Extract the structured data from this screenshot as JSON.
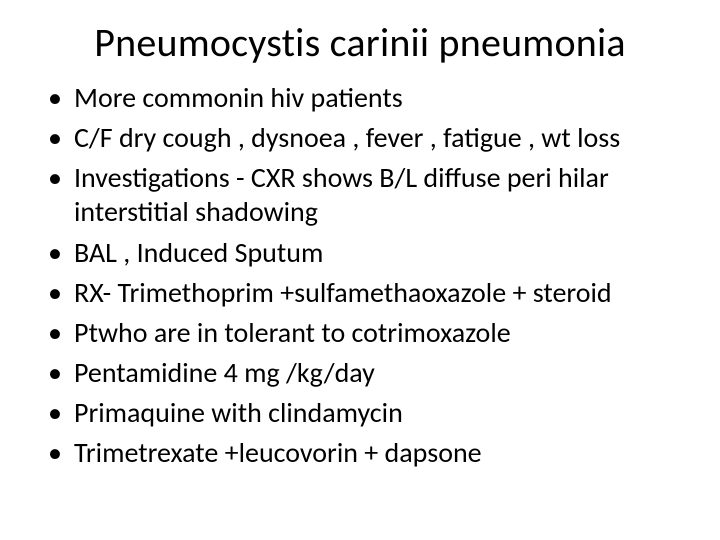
{
  "title": "Pneumocystis carinii pneumonia",
  "bullets": [
    "More commonin hiv patients",
    "C/F dry cough , dysnoea , fever , fatigue , wt loss",
    "Investigations  - CXR  shows B/L diffuse peri hilar interstitial shadowing",
    "BAL , Induced Sputum",
    "RX- Trimethoprim +sulfamethaoxazole + steroid",
    "Ptwho are in tolerant to cotrimoxazole",
    "Pentamidine 4 mg /kg/day",
    "Primaquine with clindamycin",
    "Trimetrexate +leucovorin  + dapsone"
  ],
  "colors": {
    "background": "#ffffff",
    "text": "#000000"
  },
  "typography": {
    "title_fontsize_pt": 40,
    "body_fontsize_pt": 28,
    "font_family": "Calibri"
  }
}
